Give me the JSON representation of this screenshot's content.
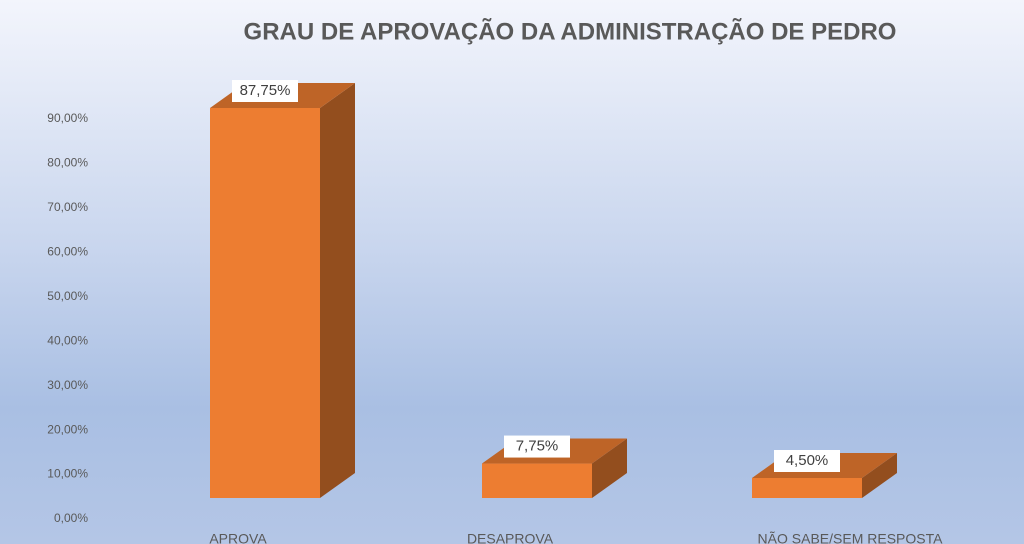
{
  "chart_data": {
    "type": "bar3d",
    "title": "GRAU DE APROVAÇÃO DA ADMINISTRAÇÃO DE PEDRO",
    "categories": [
      "APROVA",
      "DESAPROVA",
      "NÃO SABE/SEM RESPOSTA"
    ],
    "values": [
      87.75,
      7.75,
      4.5
    ],
    "value_labels": [
      "87,75%",
      "7,75%",
      "4,50%"
    ],
    "color": "#ed7d31",
    "ylim": [
      0,
      90
    ],
    "yticks": [
      {
        "value": 0,
        "label": "0,00%"
      },
      {
        "value": 10,
        "label": "10,00%"
      },
      {
        "value": 20,
        "label": "20,00%"
      },
      {
        "value": 30,
        "label": "30,00%"
      },
      {
        "value": 40,
        "label": "40,00%"
      },
      {
        "value": 50,
        "label": "50,00%"
      },
      {
        "value": 60,
        "label": "60,00%"
      },
      {
        "value": 70,
        "label": "70,00%"
      },
      {
        "value": 80,
        "label": "80,00%"
      },
      {
        "value": 90,
        "label": "90,00%"
      }
    ]
  }
}
